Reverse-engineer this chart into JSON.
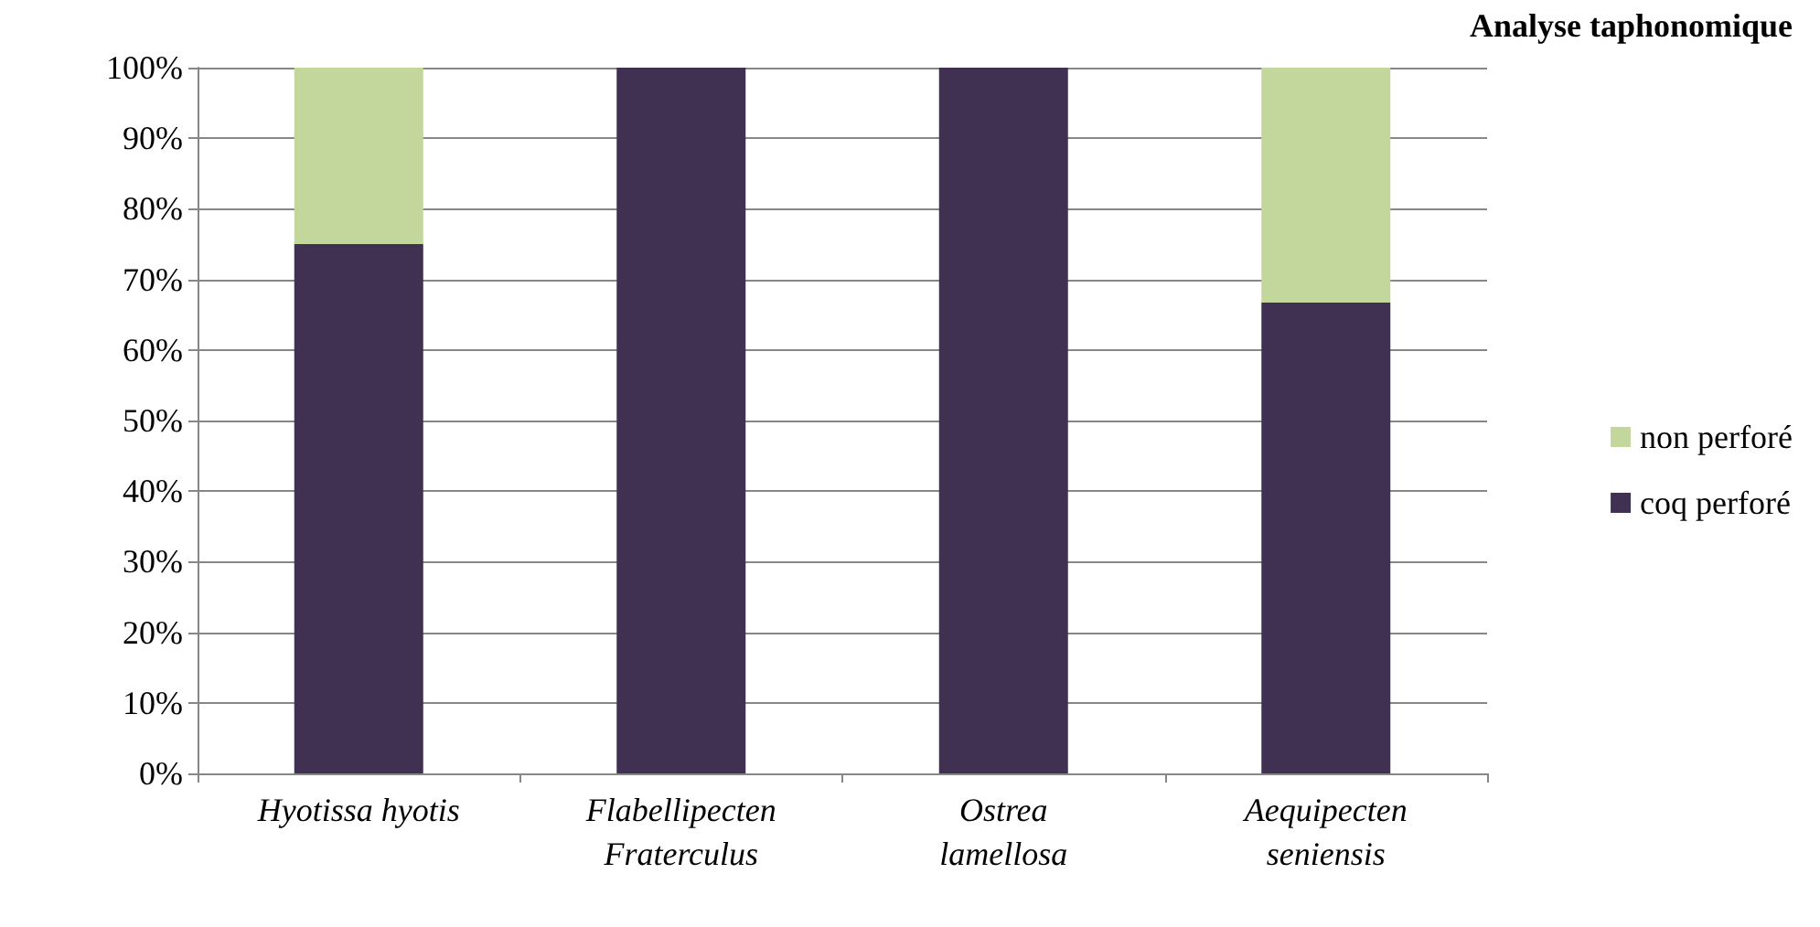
{
  "chart_data": {
    "type": "bar",
    "title": "Analyse taphonomique",
    "stacked": true,
    "categories": [
      "Hyotissa hyotis",
      "Flabellipecten\nFraterculus",
      "Ostrea\nlamellosa",
      "Aequipecten\nseniensis"
    ],
    "series": [
      {
        "name": "coq perforé",
        "color": "#403152",
        "values": [
          75,
          100,
          100,
          66.7
        ]
      },
      {
        "name": "non perforé",
        "color": "#c3d69b",
        "values": [
          25,
          0,
          0,
          33.3
        ]
      }
    ],
    "ylim": [
      0,
      100
    ],
    "yticks": [
      {
        "value": 0,
        "label": "0%"
      },
      {
        "value": 10,
        "label": "10%"
      },
      {
        "value": 20,
        "label": "20%"
      },
      {
        "value": 30,
        "label": "30%"
      },
      {
        "value": 40,
        "label": "40%"
      },
      {
        "value": 50,
        "label": "50%"
      },
      {
        "value": 60,
        "label": "60%"
      },
      {
        "value": 70,
        "label": "70%"
      },
      {
        "value": 80,
        "label": "80%"
      },
      {
        "value": 90,
        "label": "90%"
      },
      {
        "value": 100,
        "label": "100%"
      }
    ],
    "grid": "y",
    "legend": "right"
  }
}
